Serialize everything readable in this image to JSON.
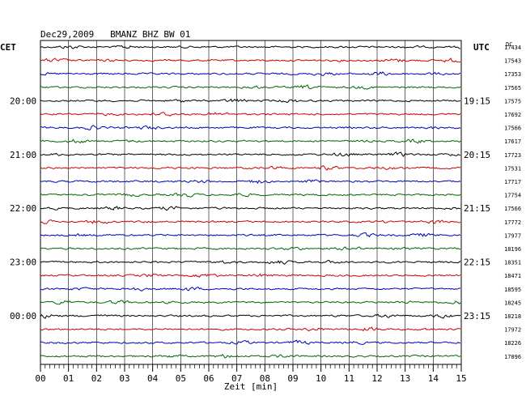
{
  "header": {
    "title": "Dec29,2009   BMANZ BHZ BW 01",
    "left_tz": "CET",
    "right_tz": "UTC",
    "dc_label": "DC"
  },
  "colors": {
    "trace_cycle": [
      "#000000",
      "#cc0000",
      "#0000bb",
      "#006600"
    ],
    "grid": "#000000",
    "background": "#ffffff"
  },
  "chart_data": {
    "type": "line",
    "title": "Dec29,2009   BMANZ BHZ BW 01",
    "xlabel": "Zeit [min]",
    "xlim": [
      0,
      15
    ],
    "x_ticks": [
      "00",
      "01",
      "02",
      "03",
      "04",
      "05",
      "06",
      "07",
      "08",
      "09",
      "10",
      "11",
      "12",
      "13",
      "14",
      "15"
    ],
    "trace_count": 24,
    "left_time_labels": [
      {
        "trace_index": 4,
        "label": "20:00"
      },
      {
        "trace_index": 8,
        "label": "21:00"
      },
      {
        "trace_index": 12,
        "label": "22:00"
      },
      {
        "trace_index": 16,
        "label": "23:00"
      },
      {
        "trace_index": 20,
        "label": "00:00"
      }
    ],
    "right_time_labels": [
      {
        "trace_index": 4,
        "label": "19:15"
      },
      {
        "trace_index": 8,
        "label": "20:15"
      },
      {
        "trace_index": 12,
        "label": "21:15"
      },
      {
        "trace_index": 16,
        "label": "22:15"
      },
      {
        "trace_index": 20,
        "label": "23:15"
      }
    ],
    "dc_offsets": [
      17434,
      17543,
      17353,
      17565,
      17575,
      17692,
      17566,
      17617,
      17723,
      17531,
      17717,
      17754,
      17566,
      17772,
      17977,
      18196,
      18351,
      18471,
      18595,
      18245,
      18218,
      17972,
      18226,
      17896
    ],
    "grid": true
  }
}
